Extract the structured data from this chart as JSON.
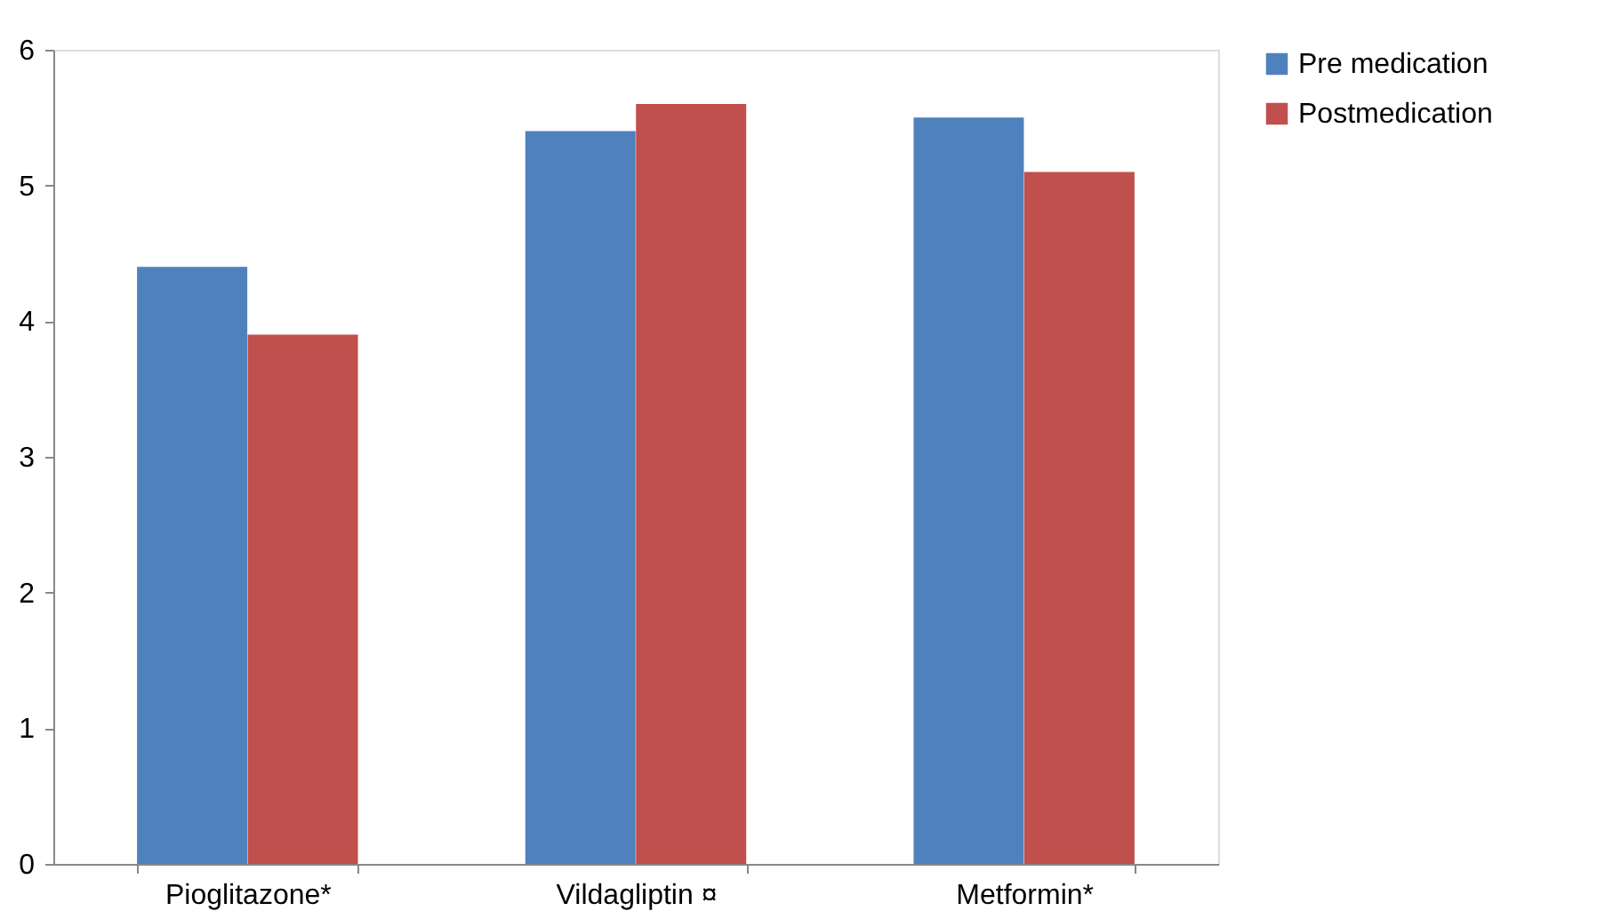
{
  "chart_data": {
    "type": "bar",
    "categories": [
      "Pioglitazone*",
      "Vildagliptin ¤",
      "Metformin*"
    ],
    "series": [
      {
        "name": "Pre medication",
        "color": "#4f81bd",
        "values": [
          4.4,
          5.4,
          5.5
        ]
      },
      {
        "name": "Postmedication",
        "color": "#c0504d",
        "values": [
          3.9,
          5.6,
          5.1
        ]
      }
    ],
    "ylim": [
      0,
      6
    ],
    "yticks": [
      0,
      1,
      2,
      3,
      4,
      5,
      6
    ],
    "grid": false,
    "legend": "right"
  }
}
